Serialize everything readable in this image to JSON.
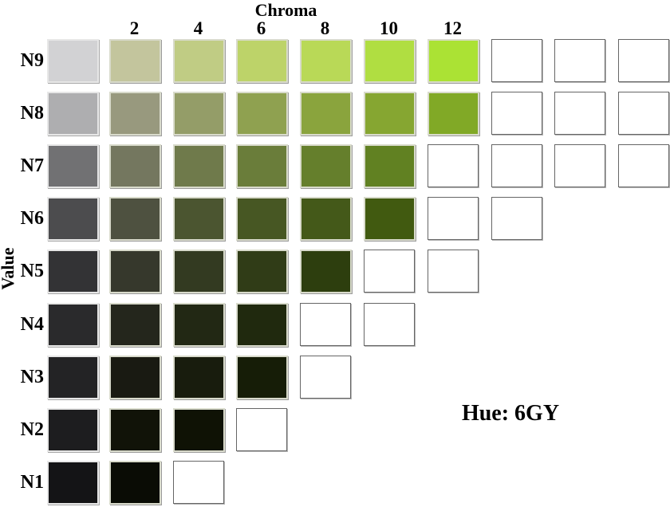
{
  "chart_data": {
    "type": "heatmap",
    "description": "Munsell color chart page: color swatches arranged by Value (rows) and Chroma (columns) for hue 6GY; outlined white cells are unprinted/out-of-gamut slots",
    "xlabel": "Chroma",
    "ylabel": "Value",
    "hue_annotation": "Hue: 6GY",
    "chroma_ticks": [
      "2",
      "4",
      "6",
      "8",
      "10",
      "12"
    ],
    "value_ticks": [
      "N9",
      "N8",
      "N7",
      "N6",
      "N5",
      "N4",
      "N3",
      "N2",
      "N1"
    ],
    "legend": "first column of each row is the neutral (N) gray patch; 'empty' = white outlined box; null = no box",
    "rows": [
      {
        "value": "N9",
        "cells": [
          "#d2d2d4",
          "#c3c59d",
          "#c0cc84",
          "#bdd369",
          "#b9d957",
          "#b0de41",
          "#abe234",
          "empty",
          "empty",
          "empty"
        ]
      },
      {
        "value": "N8",
        "cells": [
          "#aeaeb0",
          "#98997e",
          "#949d68",
          "#8fa150",
          "#8aa43d",
          "#86a631",
          "#81a926",
          "empty",
          "empty",
          "empty"
        ]
      },
      {
        "value": "N7",
        "cells": [
          "#717173",
          "#74775f",
          "#6f7a4b",
          "#6a7d3a",
          "#657f2c",
          "#618122",
          "empty",
          "empty",
          "empty",
          "empty"
        ]
      },
      {
        "value": "N6",
        "cells": [
          "#4c4c4e",
          "#4e5140",
          "#4b5530",
          "#475723",
          "#445919",
          "#415a10",
          "empty",
          "empty",
          null,
          null
        ]
      },
      {
        "value": "N5",
        "cells": [
          "#333335",
          "#36382c",
          "#333a21",
          "#303c17",
          "#2d3e0e",
          "empty",
          "empty",
          null,
          null,
          null
        ]
      },
      {
        "value": "N4",
        "cells": [
          "#2a2a2c",
          "#24261c",
          "#222814",
          "#20290e",
          "empty",
          "empty",
          null,
          null,
          null,
          null
        ]
      },
      {
        "value": "N3",
        "cells": [
          "#232325",
          "#191a12",
          "#181c0d",
          "#161d07",
          "empty",
          null,
          null,
          null,
          null,
          null
        ]
      },
      {
        "value": "N2",
        "cells": [
          "#1d1d1f",
          "#111308",
          "#0f1205",
          "empty",
          null,
          null,
          null,
          null,
          null,
          null
        ]
      },
      {
        "value": "N1",
        "cells": [
          "#141416",
          "#0a0c05",
          "empty",
          null,
          null,
          null,
          null,
          null,
          null,
          null
        ]
      }
    ]
  }
}
